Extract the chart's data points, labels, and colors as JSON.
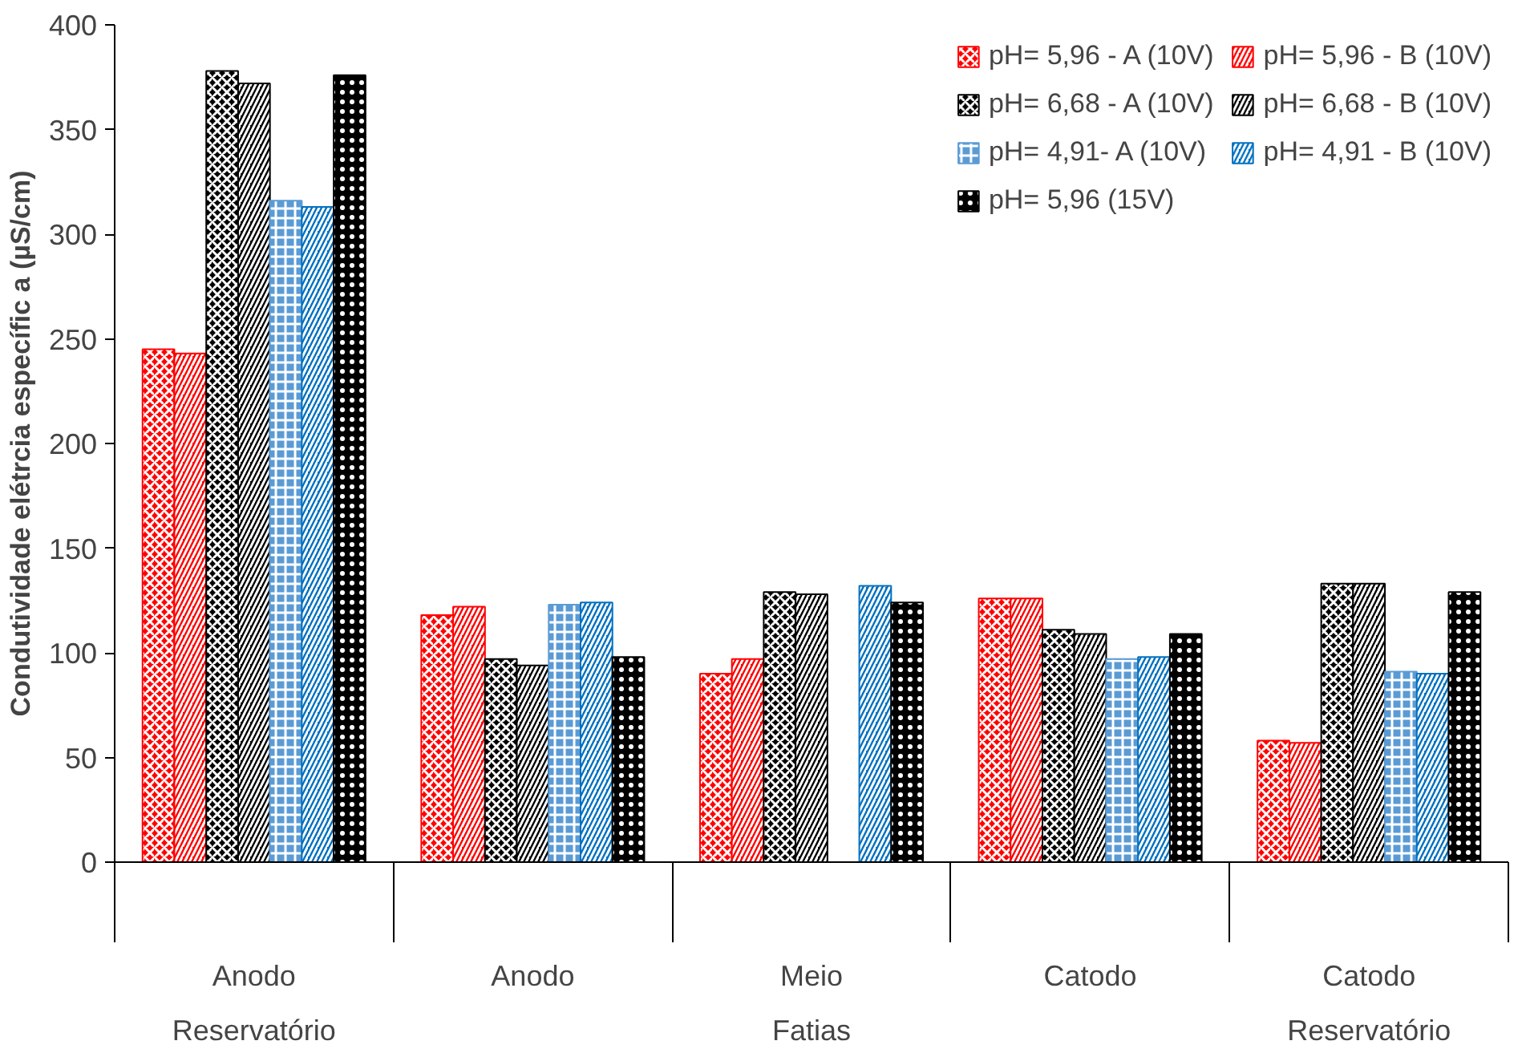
{
  "chart_data": {
    "type": "bar",
    "ylabel": "Condutividade elétrcia específic a (µS/cm)",
    "categories": [
      "Anodo",
      "Anodo",
      "Meio",
      "Catodo",
      "Catodo"
    ],
    "series": [
      {
        "name": "pH= 5,96 - A (10V)",
        "color": "#ff0000",
        "values": [
          245,
          118,
          90,
          126,
          58
        ]
      },
      {
        "name": "pH= 5,96 - B (10V)",
        "color": "#ff0000",
        "values": [
          243,
          122,
          97,
          126,
          57
        ]
      },
      {
        "name": "pH= 6,68 - A (10V)",
        "color": "#000000",
        "values": [
          378,
          97,
          129,
          111,
          133
        ]
      },
      {
        "name": "pH= 6,68 - B (10V)",
        "color": "#000000",
        "values": [
          372,
          94,
          128,
          109,
          133
        ]
      },
      {
        "name": "pH= 4,91- A (10V)",
        "color": "#5b9bd5",
        "values": [
          316,
          123,
          null,
          97,
          91
        ]
      },
      {
        "name": "pH= 4,91 - B (10V)",
        "color": "#0070c0",
        "values": [
          313,
          124,
          132,
          98,
          90
        ]
      },
      {
        "name": "pH= 5,96 (15V)",
        "color": "#000000",
        "values": [
          376,
          98,
          124,
          109,
          129
        ]
      }
    ],
    "annotations": [
      "Reservatório",
      "Fatias",
      "Reservatório"
    ],
    "ylim": [
      0,
      400
    ],
    "yticks": [
      0,
      50,
      100,
      150,
      200,
      250,
      300,
      350,
      400
    ],
    "grid": false,
    "legend": "top right"
  }
}
